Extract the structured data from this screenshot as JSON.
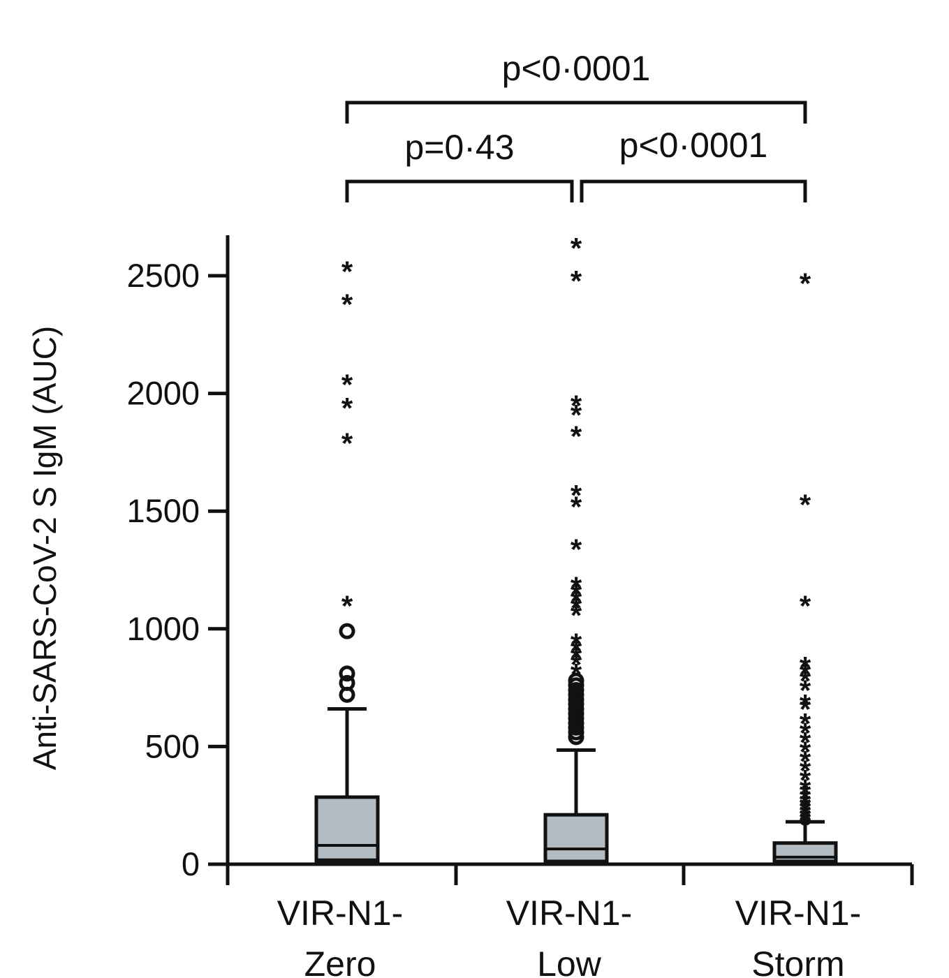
{
  "chart_data": {
    "type": "box",
    "ylabel": "Anti-SARS-CoV-2 S IgM (AUC)",
    "ylim": [
      0,
      2700
    ],
    "yticks": [
      0,
      500,
      1000,
      1500,
      2000,
      2500
    ],
    "categories": [
      {
        "line1": "VIR-N1-",
        "line2": "Zero"
      },
      {
        "line1": "VIR-N1-",
        "line2": "Low"
      },
      {
        "line1": "VIR-N1-",
        "line2": "Storm"
      }
    ],
    "colors": {
      "box_fill": "#b3bcc3",
      "ink": "#111111"
    },
    "series": [
      {
        "q1": 20,
        "median": 80,
        "q3": 285,
        "whisker_low": 0,
        "whisker_high": 660,
        "outliers_circle": [
          720,
          770,
          810,
          990
        ],
        "outliers_extreme": [
          1120,
          1810,
          1960,
          2060,
          2400,
          2540
        ]
      },
      {
        "q1": 15,
        "median": 65,
        "q3": 210,
        "whisker_low": 0,
        "whisker_high": 485,
        "outliers_circle": [
          540,
          560,
          580,
          600,
          620,
          640,
          660,
          680,
          700,
          720,
          740,
          760,
          780
        ],
        "outliers_extreme": [
          830,
          870,
          900,
          930,
          960,
          1080,
          1110,
          1140,
          1170,
          1200,
          1360,
          1540,
          1590,
          1840,
          1930,
          1970,
          2500,
          2640
        ]
      },
      {
        "q1": 10,
        "median": 30,
        "q3": 90,
        "whisker_low": 0,
        "whisker_high": 180,
        "outliers_circle": [],
        "outliers_extreme": [
          190,
          205,
          220,
          235,
          250,
          265,
          280,
          300,
          320,
          340,
          380,
          420,
          460,
          500,
          540,
          580,
          620,
          680,
          700,
          760,
          800,
          830,
          860,
          1120,
          1550,
          2490
        ]
      }
    ],
    "comparisons": [
      {
        "from": 0,
        "to": 1,
        "label": "p=0·43"
      },
      {
        "from": 1,
        "to": 2,
        "label": "p<0·0001"
      },
      {
        "from": 0,
        "to": 2,
        "label": "p<0·0001"
      }
    ]
  }
}
